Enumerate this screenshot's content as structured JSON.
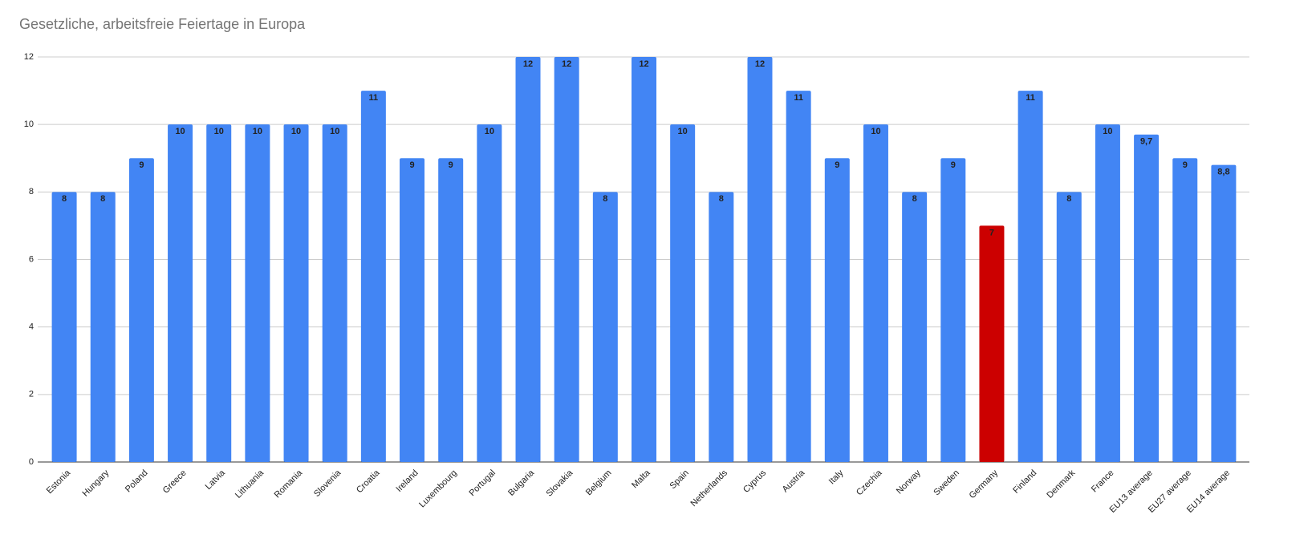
{
  "chart_data": {
    "type": "bar",
    "title": "Gesetzliche, arbeitsfreie Feiertage in Europa",
    "categories": [
      "Estonia",
      "Hungary",
      "Poland",
      "Greece",
      "Latvia",
      "Lithuania",
      "Romania",
      "Slovenia",
      "Croatia",
      "Ireland",
      "Luxembourg",
      "Portugal",
      "Bulgaria",
      "Slovakia",
      "Belgium",
      "Malta",
      "Spain",
      "Netherlands",
      "Cyprus",
      "Austria",
      "Italy",
      "Czechia",
      "Norway",
      "Sweden",
      "Germany",
      "Finland",
      "Denmark",
      "France",
      "EU13 average",
      "EU27 average",
      "EU14 average"
    ],
    "values": [
      8,
      8,
      9,
      10,
      10,
      10,
      10,
      10,
      11,
      9,
      9,
      10,
      12,
      12,
      8,
      12,
      10,
      8,
      12,
      11,
      9,
      10,
      8,
      9,
      7,
      11,
      8,
      10,
      9.7,
      9,
      8.8
    ],
    "value_labels": [
      "8",
      "8",
      "9",
      "10",
      "10",
      "10",
      "10",
      "10",
      "11",
      "9",
      "9",
      "10",
      "12",
      "12",
      "8",
      "12",
      "10",
      "8",
      "12",
      "11",
      "9",
      "10",
      "8",
      "9",
      "7",
      "11",
      "8",
      "10",
      "9,7",
      "9",
      "8,8"
    ],
    "colors": [
      "#4285f4",
      "#4285f4",
      "#4285f4",
      "#4285f4",
      "#4285f4",
      "#4285f4",
      "#4285f4",
      "#4285f4",
      "#4285f4",
      "#4285f4",
      "#4285f4",
      "#4285f4",
      "#4285f4",
      "#4285f4",
      "#4285f4",
      "#4285f4",
      "#4285f4",
      "#4285f4",
      "#4285f4",
      "#4285f4",
      "#4285f4",
      "#4285f4",
      "#4285f4",
      "#4285f4",
      "#cc0000",
      "#4285f4",
      "#4285f4",
      "#4285f4",
      "#4285f4",
      "#4285f4",
      "#4285f4"
    ],
    "ylim": [
      0,
      12
    ],
    "yticks": [
      0,
      2,
      4,
      6,
      8,
      10,
      12
    ],
    "grid": true
  }
}
